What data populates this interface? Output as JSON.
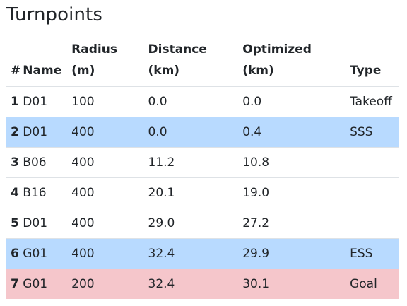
{
  "title": "Turnpoints",
  "table": {
    "headers": {
      "num": "#",
      "name": "Name",
      "radius_line1": "Radius",
      "radius_line2": "(m)",
      "distance_line1": "Distance",
      "distance_line2": "(km)",
      "optimized_line1": "Optimized",
      "optimized_line2": "(km)",
      "type": "Type"
    },
    "rows": [
      {
        "num": "1",
        "name": "D01",
        "radius": "100",
        "distance": "0.0",
        "optimized": "0.0",
        "type": "Takeoff",
        "highlight": ""
      },
      {
        "num": "2",
        "name": "D01",
        "radius": "400",
        "distance": "0.0",
        "optimized": "0.4",
        "type": "SSS",
        "highlight": "info"
      },
      {
        "num": "3",
        "name": "B06",
        "radius": "400",
        "distance": "11.2",
        "optimized": "10.8",
        "type": "",
        "highlight": ""
      },
      {
        "num": "4",
        "name": "B16",
        "radius": "400",
        "distance": "20.1",
        "optimized": "19.0",
        "type": "",
        "highlight": ""
      },
      {
        "num": "5",
        "name": "D01",
        "radius": "400",
        "distance": "29.0",
        "optimized": "27.2",
        "type": "",
        "highlight": ""
      },
      {
        "num": "6",
        "name": "G01",
        "radius": "400",
        "distance": "32.4",
        "optimized": "29.9",
        "type": "ESS",
        "highlight": "info"
      },
      {
        "num": "7",
        "name": "G01",
        "radius": "200",
        "distance": "32.4",
        "optimized": "30.1",
        "type": "Goal",
        "highlight": "danger"
      }
    ]
  },
  "colors": {
    "info_row": "#b8daff",
    "danger_row": "#f5c6cb",
    "text": "#212529",
    "border": "#dee2e6"
  }
}
